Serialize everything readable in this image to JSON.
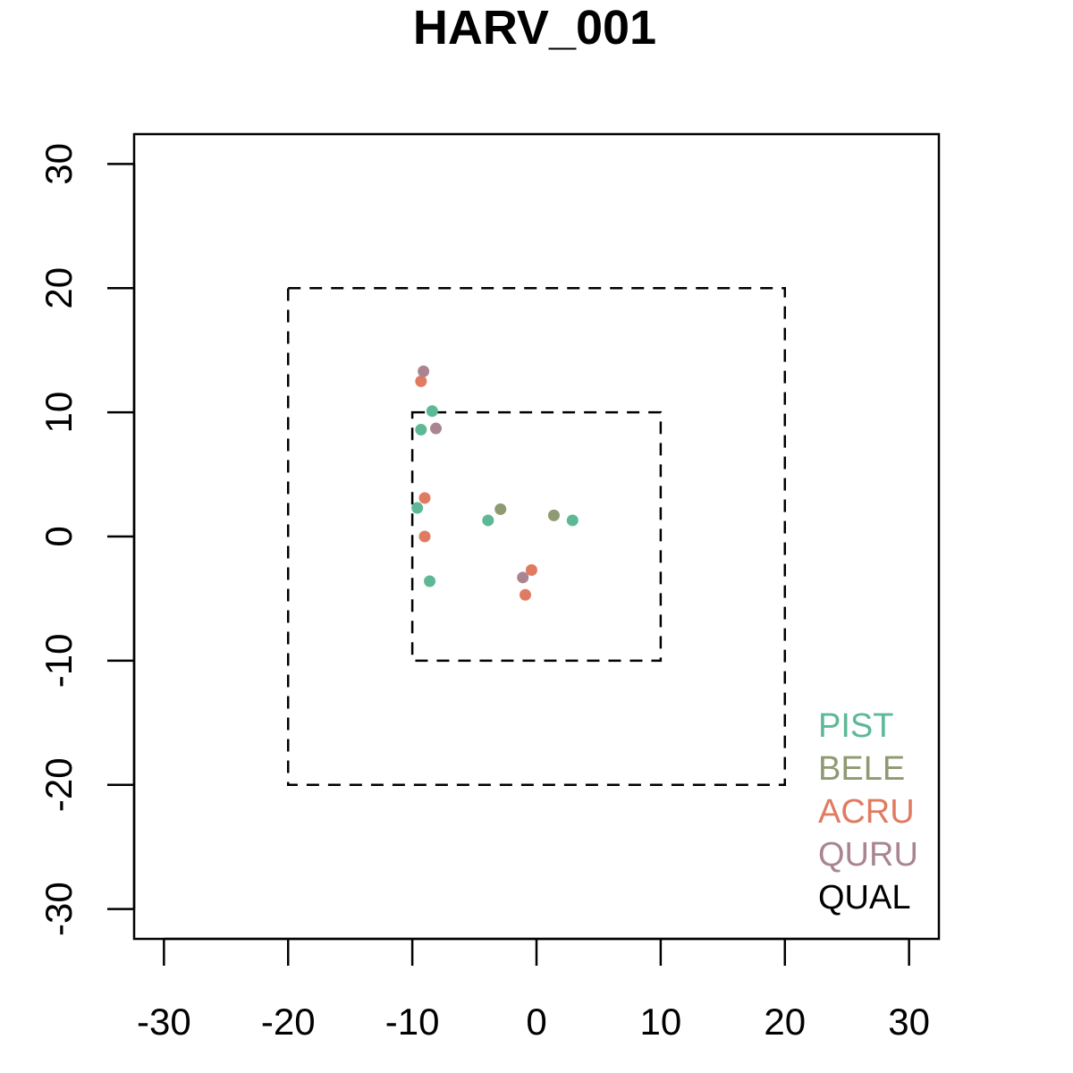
{
  "chart_data": {
    "type": "scatter",
    "title": "HARV_001",
    "xlabel": "",
    "ylabel": "",
    "xlim": [
      -32.4,
      32.4
    ],
    "ylim": [
      -32.4,
      32.4
    ],
    "x_ticks": [
      -30,
      -20,
      -10,
      0,
      10,
      20,
      30
    ],
    "y_ticks": [
      -30,
      -20,
      -10,
      0,
      10,
      20,
      30
    ],
    "x_tick_labels": [
      "-30",
      "-20",
      "-10",
      "0",
      "10",
      "20",
      "30"
    ],
    "y_tick_labels": [
      "-30",
      "-20",
      "-10",
      "0",
      "10",
      "20",
      "30"
    ],
    "grid": false,
    "legend_position": "bottom-right",
    "reference_squares": [
      {
        "xmin": -20,
        "xmax": 20,
        "ymin": -20,
        "ymax": 20,
        "style": "dashed"
      },
      {
        "xmin": -10,
        "xmax": 10,
        "ymin": -10,
        "ymax": 10,
        "style": "dashed"
      }
    ],
    "series": [
      {
        "name": "PIST",
        "color": "#5cb895",
        "points": [
          {
            "x": -8.4,
            "y": 10.1
          },
          {
            "x": -9.3,
            "y": 8.6
          },
          {
            "x": -9.6,
            "y": 2.3
          },
          {
            "x": -3.9,
            "y": 1.3
          },
          {
            "x": 2.9,
            "y": 1.3
          },
          {
            "x": -8.6,
            "y": -3.6
          }
        ]
      },
      {
        "name": "BELE",
        "color": "#8e9a72",
        "points": [
          {
            "x": -2.9,
            "y": 2.2
          },
          {
            "x": 1.4,
            "y": 1.7
          }
        ]
      },
      {
        "name": "ACRU",
        "color": "#e07b61",
        "points": [
          {
            "x": -9.3,
            "y": 12.5
          },
          {
            "x": -9.0,
            "y": 3.1
          },
          {
            "x": -9.0,
            "y": 0.0
          },
          {
            "x": -0.4,
            "y": -2.7
          },
          {
            "x": -0.9,
            "y": -4.7
          }
        ]
      },
      {
        "name": "QURU",
        "color": "#aa8591",
        "points": [
          {
            "x": -9.1,
            "y": 13.3
          },
          {
            "x": -8.1,
            "y": 8.7
          },
          {
            "x": -1.1,
            "y": -3.3
          }
        ]
      },
      {
        "name": "QUAL",
        "color": "#000000",
        "points": []
      }
    ]
  }
}
